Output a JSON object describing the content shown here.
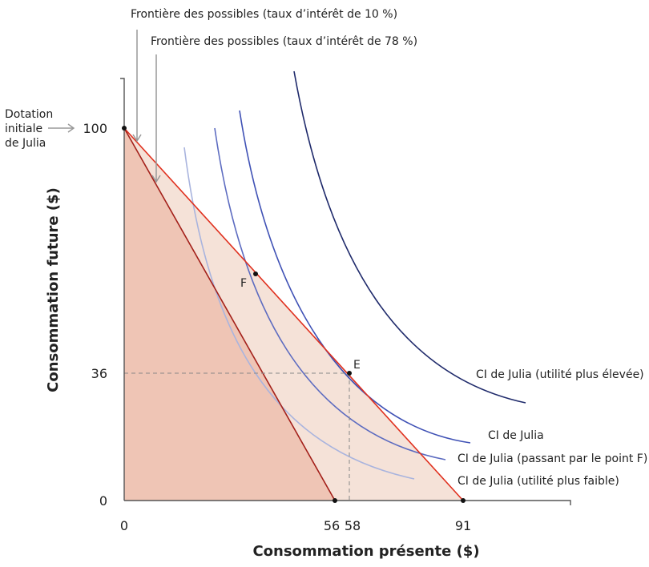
{
  "chart_data": {
    "type": "line",
    "xlabel": "Consommation présente ($)",
    "ylabel": "Consommation future ($)",
    "x_ticks": [
      0,
      56,
      58,
      91
    ],
    "y_ticks": [
      0,
      36,
      100
    ],
    "endowment": {
      "x": 0,
      "y": 100,
      "label": "Dotation initiale de Julia"
    },
    "frontiers": [
      {
        "name": "Frontière des possibles (taux d’intérêt de 10 %)",
        "from": [
          0,
          100
        ],
        "to": [
          91,
          0
        ],
        "color": "#e0301e"
      },
      {
        "name": "Frontière des possibles (taux d’intérêt de 78 %)",
        "from": [
          0,
          100
        ],
        "to": [
          56,
          0
        ],
        "color": "#a3201a"
      }
    ],
    "points": [
      {
        "label": "E",
        "x": 58,
        "y": 36
      },
      {
        "label": "F"
      }
    ],
    "indifference_curves": [
      {
        "name": "CI de Julia (utilité plus élevée)",
        "color": "#1f2a6b"
      },
      {
        "name": "CI de Julia",
        "color": "#3f51b5"
      },
      {
        "name": "CI de Julia (passant par le point F)",
        "color": "#5c6bc0"
      },
      {
        "name": "CI de Julia (utilité plus faible)",
        "color": "#a9b4de"
      }
    ],
    "fill_colors": {
      "inner": "#efc5b5",
      "outer": "#f5e2d8"
    }
  }
}
